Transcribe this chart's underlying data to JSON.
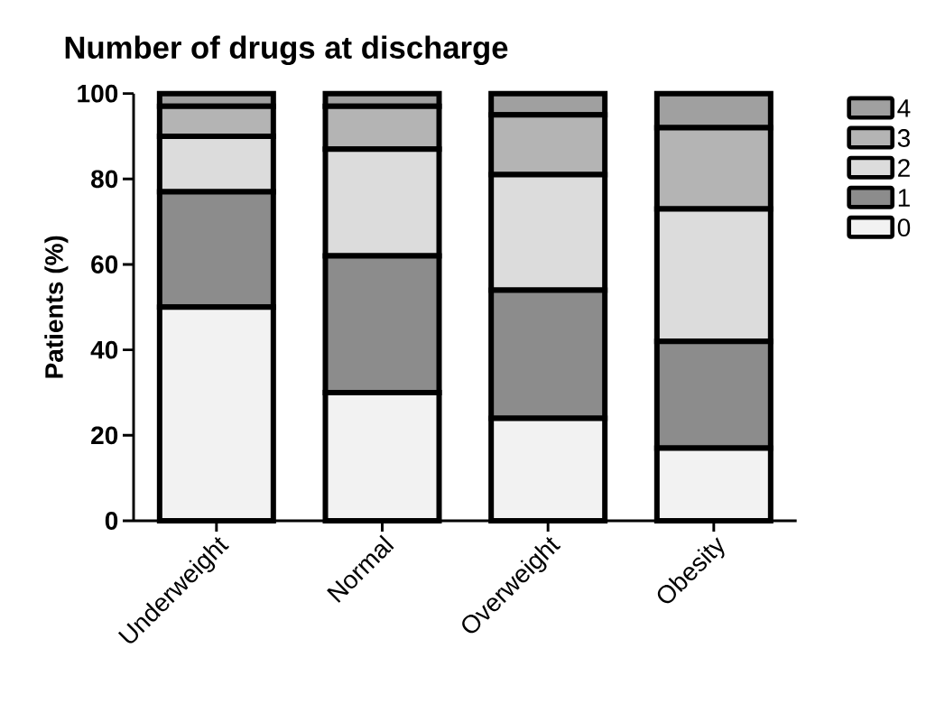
{
  "chart_data": {
    "type": "bar",
    "stacked": true,
    "title": "Number of drugs at discharge",
    "ylabel": "Patients (%)",
    "categories": [
      "Underweight",
      "Normal",
      "Overweight",
      "Obesity"
    ],
    "series": [
      {
        "name": "0",
        "color": "#f2f2f2",
        "values": [
          50,
          30,
          24,
          17
        ]
      },
      {
        "name": "1",
        "color": "#8c8c8c",
        "values": [
          27,
          32,
          30,
          25
        ]
      },
      {
        "name": "2",
        "color": "#dcdcdc",
        "values": [
          13,
          25,
          27,
          31
        ]
      },
      {
        "name": "3",
        "color": "#b4b4b4",
        "values": [
          7,
          10,
          14,
          19
        ]
      },
      {
        "name": "4",
        "color": "#a0a0a0",
        "values": [
          3,
          3,
          5,
          8
        ]
      }
    ],
    "ylim": [
      0,
      100
    ],
    "yticks": [
      0,
      20,
      40,
      60,
      80,
      100
    ],
    "grid": false,
    "legend": "top right"
  }
}
